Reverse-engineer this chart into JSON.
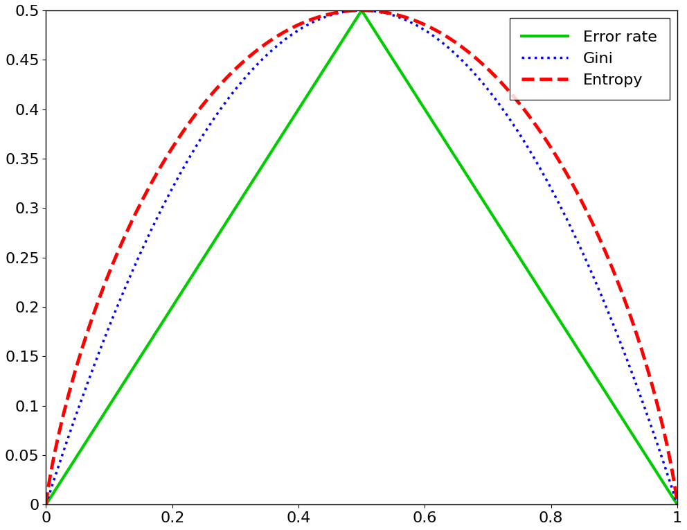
{
  "title": "",
  "xlabel": "",
  "ylabel": "",
  "xlim": [
    0,
    1
  ],
  "ylim": [
    0,
    0.5
  ],
  "xticks": [
    0,
    0.2,
    0.4,
    0.6,
    0.8,
    1.0
  ],
  "yticks": [
    0,
    0.05,
    0.1,
    0.15,
    0.2,
    0.25,
    0.3,
    0.35,
    0.4,
    0.45,
    0.5
  ],
  "error_rate_color": "#00cc00",
  "gini_color": "#0000ff",
  "entropy_color": "#ff0000",
  "error_rate_lw": 3.0,
  "gini_lw": 2.5,
  "entropy_lw": 3.5,
  "legend_labels": [
    "Error rate",
    "Gini",
    "Entropy"
  ],
  "background_color": "#ffffff",
  "figsize": [
    9.92,
    7.65
  ],
  "dpi": 100
}
